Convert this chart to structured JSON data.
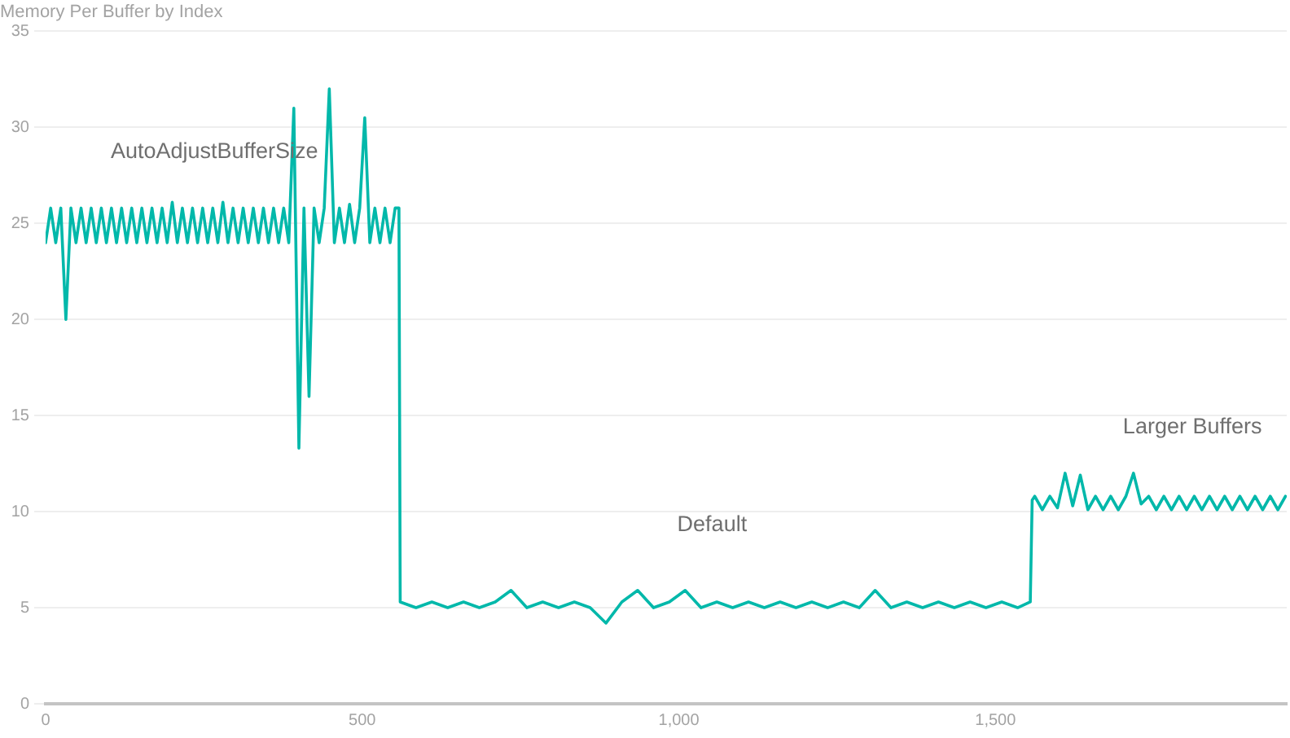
{
  "chart_data": {
    "type": "line",
    "title": "Memory Per Buffer by Index",
    "x": [
      0,
      8,
      16,
      24,
      32,
      40,
      48,
      56,
      64,
      72,
      80,
      88,
      96,
      104,
      112,
      120,
      128,
      136,
      144,
      152,
      160,
      168,
      176,
      184,
      192,
      200,
      208,
      216,
      224,
      232,
      240,
      248,
      256,
      264,
      272,
      280,
      288,
      296,
      304,
      312,
      320,
      328,
      336,
      344,
      352,
      360,
      368,
      376,
      384,
      392,
      400,
      408,
      416,
      424,
      432,
      440,
      448,
      456,
      464,
      472,
      480,
      488,
      496,
      504,
      512,
      520,
      528,
      536,
      544,
      552,
      558,
      560,
      585,
      610,
      635,
      660,
      685,
      710,
      735,
      760,
      785,
      810,
      835,
      860,
      885,
      910,
      935,
      960,
      985,
      1010,
      1035,
      1060,
      1085,
      1110,
      1135,
      1160,
      1185,
      1210,
      1235,
      1260,
      1285,
      1310,
      1335,
      1360,
      1385,
      1410,
      1435,
      1460,
      1485,
      1510,
      1535,
      1555,
      1558,
      1562,
      1574,
      1586,
      1598,
      1610,
      1622,
      1634,
      1646,
      1658,
      1670,
      1682,
      1694,
      1706,
      1718,
      1730,
      1742,
      1754,
      1766,
      1778,
      1790,
      1802,
      1814,
      1826,
      1838,
      1850,
      1862,
      1874,
      1886,
      1898,
      1910,
      1922,
      1934,
      1946,
      1958
    ],
    "values": [
      24,
      25.8,
      24,
      25.8,
      20,
      25.8,
      24,
      25.8,
      24,
      25.8,
      24,
      25.8,
      24,
      25.8,
      24,
      25.8,
      24,
      25.8,
      24,
      25.8,
      24,
      25.8,
      24,
      25.8,
      24,
      26.1,
      24,
      25.8,
      24,
      25.8,
      24,
      25.8,
      24,
      25.8,
      24,
      26.1,
      24,
      25.8,
      24,
      25.8,
      24,
      25.8,
      24,
      25.8,
      24,
      25.8,
      24,
      25.8,
      24,
      31,
      13.3,
      25.8,
      16,
      25.8,
      24,
      25.8,
      32,
      24,
      25.8,
      24,
      26,
      24,
      25.8,
      30.5,
      24,
      25.8,
      24,
      25.8,
      24,
      25.8,
      25.8,
      5.3,
      5.0,
      5.3,
      5.0,
      5.3,
      5.0,
      5.3,
      5.9,
      5.0,
      5.3,
      5.0,
      5.3,
      5.0,
      4.2,
      5.3,
      5.9,
      5.0,
      5.3,
      5.9,
      5.0,
      5.3,
      5.0,
      5.3,
      5.0,
      5.3,
      5.0,
      5.3,
      5.0,
      5.3,
      5.0,
      5.9,
      5.0,
      5.3,
      5.0,
      5.3,
      5.0,
      5.3,
      5.0,
      5.3,
      5.0,
      5.3,
      10.6,
      10.8,
      10.1,
      10.8,
      10.2,
      12,
      10.3,
      11.9,
      10.1,
      10.8,
      10.1,
      10.8,
      10.1,
      10.8,
      12,
      10.4,
      10.8,
      10.1,
      10.8,
      10.1,
      10.8,
      10.1,
      10.8,
      10.1,
      10.8,
      10.1,
      10.8,
      10.1,
      10.8,
      10.1,
      10.8,
      10.1,
      10.8,
      10.1,
      10.8
    ],
    "color": "#01b8aa",
    "xlim": [
      0,
      1960
    ],
    "xticks": [
      0,
      500,
      {
        "value": 1000,
        "label": "1,000"
      },
      {
        "value": 1500,
        "label": "1,500"
      }
    ],
    "ylim": [
      0,
      35
    ],
    "yticks": [
      0,
      5,
      10,
      15,
      20,
      25,
      30,
      35
    ],
    "grid": "y",
    "legend": false,
    "marker": "none",
    "line_style": "solid",
    "annotations": [
      "AutoAdjustBufferSize",
      "Default",
      "Larger Buffers"
    ]
  }
}
